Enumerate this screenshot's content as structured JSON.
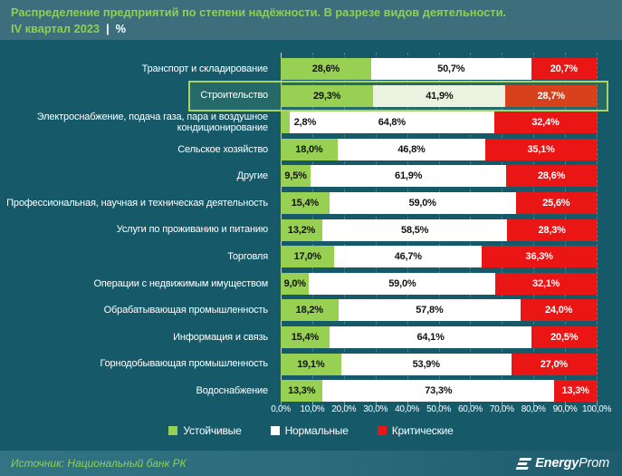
{
  "header": {
    "title_line1": "Распределение предприятий по степени надёжности. В разрезе видов деятельности.",
    "title_line2_accent": "IV квартал 2023",
    "title_line2_sep": "|",
    "title_line2_unit": "%"
  },
  "chart_data": {
    "type": "bar",
    "orientation": "horizontal",
    "stacked": true,
    "title": "Распределение предприятий по степени надёжности. В разрезе видов деятельности. IV квартал 2023, %",
    "xlim": [
      0,
      100
    ],
    "grid": "vertical-dashed",
    "legend_position": "bottom",
    "categories": [
      "Транспорт и складирование",
      "Строительство",
      "Электроснабжение, подача газа, пара и воздушное кондиционирование",
      "Сельское хозяйство",
      "Другие",
      "Профессиональная, научная и техническая деятельность",
      "Услуги по проживанию и питанию",
      "Торговля",
      "Операции с недвижимым имуществом",
      "Обрабатывающая промышленность",
      "Информация и связь",
      "Горнодобывающая промышленность",
      "Водоснабжение"
    ],
    "series": [
      {
        "name": "Устойчивые",
        "values": [
          28.6,
          29.3,
          2.8,
          18.0,
          9.5,
          15.4,
          13.2,
          17.0,
          9.0,
          18.2,
          15.4,
          19.1,
          13.3
        ]
      },
      {
        "name": "Нормальные",
        "values": [
          50.7,
          41.9,
          64.8,
          46.8,
          61.9,
          59.0,
          58.5,
          46.7,
          59.0,
          57.8,
          64.1,
          53.9,
          73.3
        ]
      },
      {
        "name": "Критические",
        "values": [
          20.7,
          28.7,
          32.4,
          35.1,
          28.6,
          25.6,
          28.3,
          36.3,
          32.1,
          24.0,
          20.5,
          27.0,
          13.3
        ]
      }
    ],
    "x_ticks": [
      "0,0%",
      "10,0%",
      "20,0%",
      "30,0%",
      "40,0%",
      "50,0%",
      "60,0%",
      "70,0%",
      "80,0%",
      "90,0%",
      "100,0%"
    ],
    "highlight": {
      "index": 1,
      "category": "Строительство"
    }
  },
  "legend": [
    {
      "label": "Устойчивые",
      "color_key": "bar_green"
    },
    {
      "label": "Нормальные",
      "color_key": "bar_white"
    },
    {
      "label": "Критические",
      "color_key": "bar_red"
    }
  ],
  "colors": {
    "background": "#165a6a",
    "header_bg": "#3d6e7b",
    "title_green": "#8ed14f",
    "bar_green": "#97d052",
    "bar_white": "#ffffff",
    "bar_red": "#ea1515",
    "highlight_green": "#97d052",
    "highlight_white": "#ecf2e0",
    "highlight_red": "#d7421c",
    "highlight_border": "#a6d465",
    "value_dark": "#121212",
    "value_light": "#ffffff"
  },
  "footer": {
    "source": "Источник: Национальный банк РК",
    "logo_bold": "Energy",
    "logo_light": "Prom"
  }
}
